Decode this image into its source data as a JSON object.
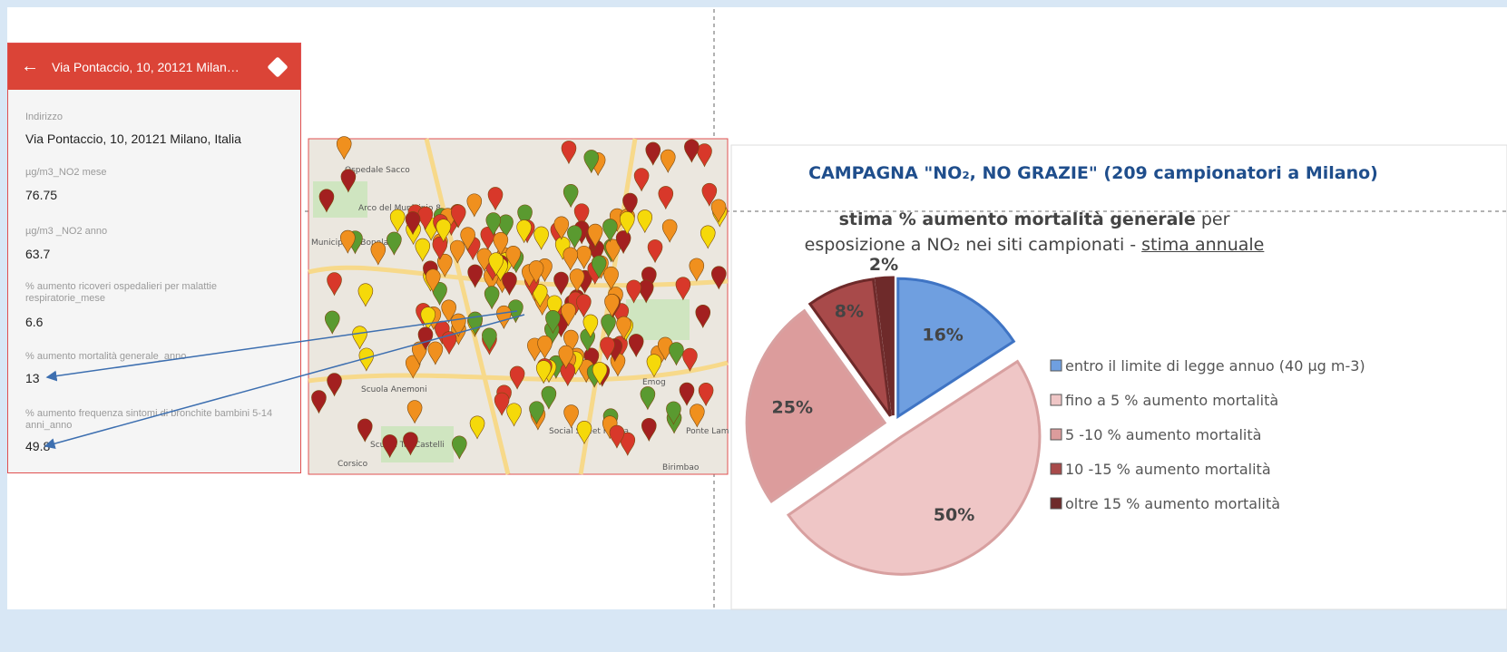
{
  "panel": {
    "header": "Via Pontaccio, 10, 20121 Milan…",
    "fields": [
      {
        "label": "Indirizzo",
        "value": "Via Pontaccio, 10, 20121 Milano, Italia"
      },
      {
        "label": "µg/m3_NO2 mese",
        "value": "76.75"
      },
      {
        "label": "µg/m3 _NO2 anno",
        "value": "63.7"
      },
      {
        "label": "% aumento ricoveri ospedalieri per malattie respiratorie_mese",
        "value": "6.6"
      },
      {
        "label": "% aumento mortalità generale_anno",
        "value": "13"
      },
      {
        "label": "% aumento frequenza sintomi di bronchite bambini 5-14 anni_anno",
        "value": "49.8"
      }
    ]
  },
  "map": {
    "labels": [
      "Ospedale Sacco",
      "Arco del Municipio 8",
      "Municipio 8 Bonola",
      "Scuola Anemoni",
      "Scuola Tre Castelli",
      "Corsico",
      "Emog",
      "Ponte Lam",
      "Birimbao",
      "Social Street Piazza"
    ]
  },
  "chart_data": {
    "type": "pie",
    "title": "CAMPAGNA \"NO₂, NO GRAZIE\" (209 campionatori a Milano)",
    "subtitle": [
      "stima % aumento mortalità generale",
      " per esposizione a NO₂ nei siti campionati - ",
      "stima annuale"
    ],
    "categories": [
      "entro il limite di legge annuo (40 µg m-3)",
      "fino a 5 % aumento mortalità",
      "5 -10 % aumento mortalità",
      "10 -15 % aumento mortalità",
      "oltre 15 % aumento mortalità"
    ],
    "values": [
      16,
      50,
      25,
      8,
      2
    ],
    "value_labels": [
      "16%",
      "50%",
      "25%",
      "8%",
      "2%"
    ],
    "colors": [
      "#6f9fe0",
      "#efc6c6",
      "#dc9c9c",
      "#a84a4a",
      "#6e2a2a"
    ]
  }
}
